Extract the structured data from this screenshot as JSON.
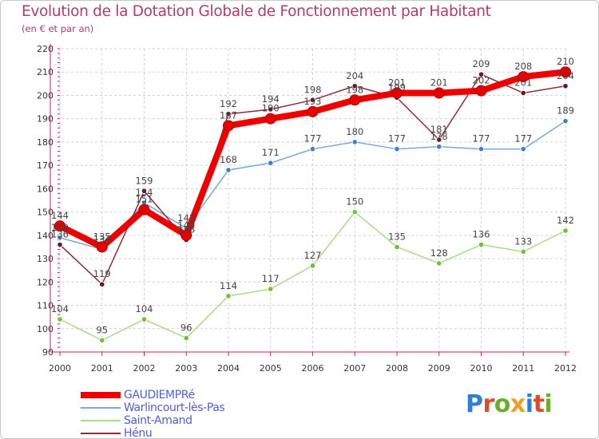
{
  "title": "Evolution de la Dotation Globale de Fonctionnement par Habitant",
  "subtitle": "(en € et par an)",
  "brand": {
    "text": "Proxiti",
    "letter_colors": [
      "#2f7fd6",
      "#e04a2a",
      "#6aae2a",
      "#f0a020",
      "#2f7fd6",
      "#e04a2a",
      "#6aae2a"
    ]
  },
  "chart_data": {
    "type": "line",
    "title": "Evolution de la Dotation Globale de Fonctionnement par Habitant",
    "subtitle": "(en € et par an)",
    "xlabel": "",
    "ylabel": "",
    "categories": [
      "2000",
      "2001",
      "2002",
      "2003",
      "2004",
      "2005",
      "2006",
      "2007",
      "2008",
      "2009",
      "2010",
      "2011",
      "2012"
    ],
    "ylim": [
      90,
      220
    ],
    "yticks": [
      90,
      100,
      110,
      120,
      130,
      140,
      150,
      160,
      170,
      180,
      190,
      200,
      210,
      220
    ],
    "grid": true,
    "legend_position": "bottom-left",
    "series": [
      {
        "name": "GAUDIEMPRé",
        "color": "#ee0000",
        "marker_color": "#e80000",
        "style": "thick",
        "values": [
          144,
          135,
          151,
          140,
          187,
          190,
          193,
          198,
          201,
          201,
          202,
          208,
          210
        ],
        "labels": [
          "144",
          "135",
          "151",
          "140",
          "187",
          "190",
          "193",
          "198",
          "201",
          "201",
          "202",
          "208",
          "210"
        ]
      },
      {
        "name": "Warlincourt-lès-Pas",
        "color": "#77aad8",
        "marker_color": "#3a82d0",
        "style": "thin",
        "values": [
          139,
          134,
          154,
          143,
          168,
          171,
          177,
          180,
          177,
          178,
          177,
          177,
          189
        ],
        "labels": [
          "139",
          "134",
          "154",
          "143",
          "168",
          "171",
          "177",
          "180",
          "177",
          "178",
          "177",
          "177",
          "189"
        ]
      },
      {
        "name": "Saint-Amand",
        "color": "#a8dc88",
        "marker_color": "#6cc23a",
        "style": "thin",
        "values": [
          104,
          95,
          104,
          96,
          114,
          117,
          127,
          150,
          135,
          128,
          136,
          133,
          142
        ],
        "labels": [
          "104",
          "95",
          "104",
          "96",
          "114",
          "117",
          "127",
          "150",
          "135",
          "128",
          "136",
          "133",
          "142"
        ]
      },
      {
        "name": "Hénu",
        "color": "#8a2e3c",
        "marker_color": "#6a1520",
        "style": "thin",
        "values": [
          136,
          119,
          159,
          138,
          192,
          194,
          198,
          204,
          199,
          181,
          209,
          201,
          204
        ],
        "labels": [
          "136",
          "119",
          "159",
          "138",
          "192",
          "194",
          "198",
          "204",
          "199",
          "181",
          "209",
          "201",
          "204"
        ]
      }
    ]
  }
}
